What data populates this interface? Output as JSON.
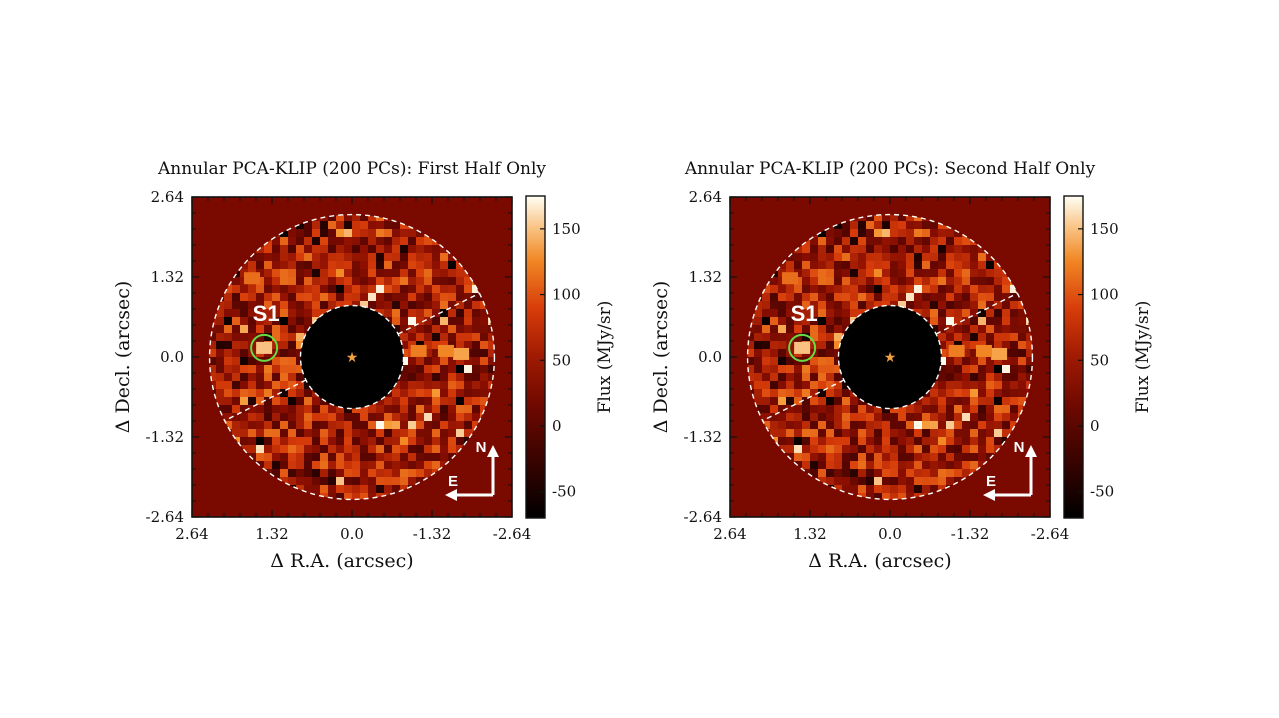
{
  "colors": {
    "background": "#7a0a00",
    "mask": "#000000",
    "dashed": "#ffffff",
    "marker_circle": "#66dd44",
    "star": "#f0a040",
    "compass": "#ffffff"
  },
  "chart_data": [
    {
      "type": "heatmap",
      "title": "Annular PCA-KLIP (200 PCs): First Half Only",
      "xlabel": "Δ R.A. (arcsec)",
      "ylabel": "Δ Decl. (arcsec)",
      "xlim": [
        2.64,
        -2.64
      ],
      "ylim": [
        -2.64,
        2.64
      ],
      "x_ticks": [
        "2.64",
        "1.32",
        "0.0",
        "-1.32",
        "-2.64"
      ],
      "y_ticks": [
        "2.64",
        "1.32",
        "0.0",
        "-1.32",
        "-2.64"
      ],
      "colorbar": {
        "label": "Flux (MJy/sr)",
        "range": [
          -70,
          175
        ],
        "ticks": [
          "150",
          "100",
          "50",
          "0",
          "-50"
        ]
      },
      "mask_inner_radius_arcsec": 0.85,
      "annulus_outer_radius_arcsec": 2.35,
      "source": {
        "label": "S1",
        "ra": 1.45,
        "dec": 0.15
      },
      "star": {
        "ra": 0.0,
        "dec": 0.0
      },
      "compass": {
        "north": "N",
        "east": "E"
      }
    },
    {
      "type": "heatmap",
      "title": "Annular PCA-KLIP (200 PCs): Second Half Only",
      "xlabel": "Δ R.A. (arcsec)",
      "ylabel": "Δ Decl. (arcsec)",
      "xlim": [
        2.64,
        -2.64
      ],
      "ylim": [
        -2.64,
        2.64
      ],
      "x_ticks": [
        "2.64",
        "1.32",
        "0.0",
        "-1.32",
        "-2.64"
      ],
      "y_ticks": [
        "2.64",
        "1.32",
        "0.0",
        "-1.32",
        "-2.64"
      ],
      "colorbar": {
        "label": "Flux (MJy/sr)",
        "range": [
          -70,
          175
        ],
        "ticks": [
          "150",
          "100",
          "50",
          "0",
          "-50"
        ]
      },
      "mask_inner_radius_arcsec": 0.85,
      "annulus_outer_radius_arcsec": 2.35,
      "source": {
        "label": "S1",
        "ra": 1.45,
        "dec": 0.15
      },
      "star": {
        "ra": 0.0,
        "dec": 0.0
      },
      "compass": {
        "north": "N",
        "east": "E"
      }
    }
  ]
}
